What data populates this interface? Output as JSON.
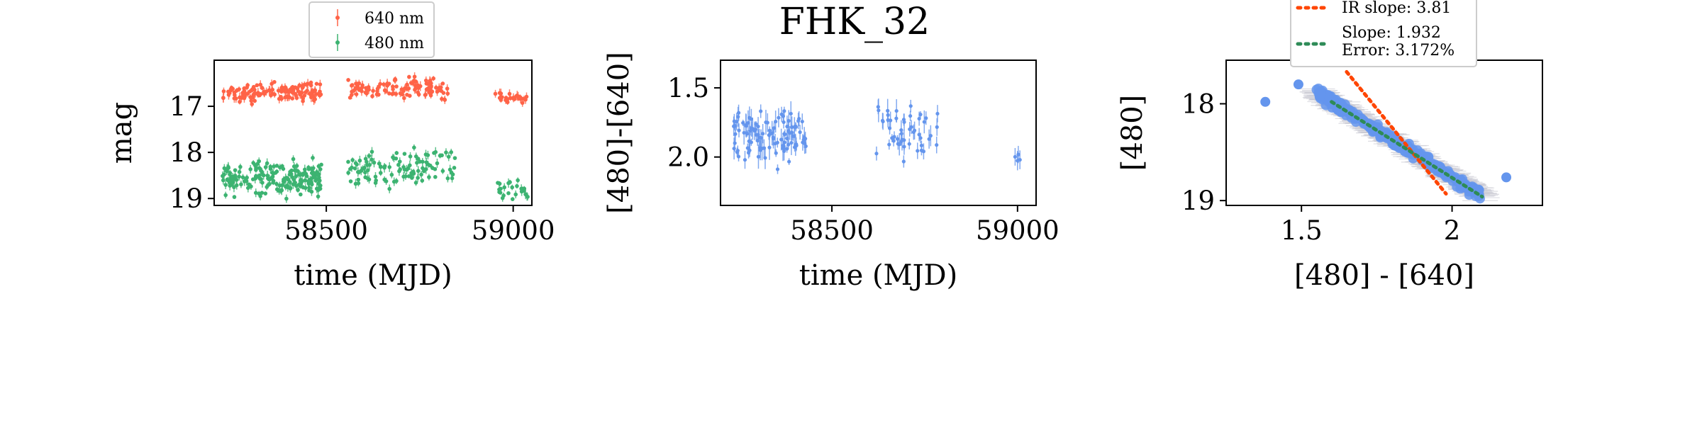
{
  "colors": {
    "red": "#ff6347",
    "green": "#3cb371",
    "blue": "#6495ed",
    "redDot": "#ff4500",
    "greenDot": "#2e8b57",
    "errorbar_gray": "#c8c8d2"
  },
  "title": "FHK_32",
  "chart_data": [
    {
      "type": "scatter",
      "xlabel": "time (MJD)",
      "ylabel": "mag",
      "xlim": [
        58200,
        59050
      ],
      "ylim": [
        19.15,
        16.0
      ],
      "xticks": [
        58500,
        59000
      ],
      "yticks": [
        17,
        18,
        19
      ],
      "legend": {
        "placement": "top-center-outside"
      },
      "series": [
        {
          "name": "640 nm",
          "color": "red",
          "segments": [
            {
              "x": [
                58222,
                58490
              ],
              "y_mean": 16.7,
              "y_spread": 0.35,
              "n": 130
            },
            {
              "x": [
                58558,
                58825
              ],
              "y_mean": 16.62,
              "y_spread": 0.4,
              "n": 110
            },
            {
              "x": [
                58952,
                59040
              ],
              "y_mean": 16.82,
              "y_spread": 0.15,
              "n": 30
            }
          ]
        },
        {
          "name": "480 nm",
          "color": "green",
          "segments": [
            {
              "x": [
                58222,
                58490
              ],
              "y_mean": 18.55,
              "y_spread": 0.65,
              "n": 190
            },
            {
              "x": [
                58558,
                58850
              ],
              "y_mean": 18.35,
              "y_spread": 0.7,
              "n": 110
            },
            {
              "x": [
                58952,
                59040
              ],
              "y_mean": 18.8,
              "y_spread": 0.3,
              "n": 25
            }
          ]
        }
      ]
    },
    {
      "type": "scatter",
      "xlabel": "time (MJD)",
      "ylabel": "[480]-[640]",
      "xlim": [
        58200,
        59050
      ],
      "ylim": [
        2.35,
        1.3
      ],
      "xticks": [
        58500,
        59000
      ],
      "yticks": [
        1.5,
        2.0
      ],
      "series": [
        {
          "color": "blue",
          "segments": [
            {
              "x": [
                58235,
                58430
              ],
              "y_mean": 1.85,
              "y_spread": 0.28,
              "n": 110
            },
            {
              "x": [
                58620,
                58790
              ],
              "y_mean": 1.82,
              "y_spread": 0.32,
              "n": 50
            },
            {
              "x": [
                58990,
                59030
              ],
              "y_mean": 2.0,
              "y_spread": 0.08,
              "n": 4
            }
          ]
        }
      ]
    },
    {
      "type": "scatter",
      "xlabel": "[480] - [640]",
      "ylabel": "[480]",
      "xlim": [
        1.25,
        2.3
      ],
      "ylim": [
        19.05,
        17.55
      ],
      "xticks": [
        1.5,
        2.0
      ],
      "yticks": [
        18,
        19
      ],
      "legend": {
        "placement": "top-center-outside"
      },
      "points": {
        "color": "blue",
        "n": 320,
        "outliers": [
          [
            1.38,
            17.98
          ],
          [
            1.49,
            17.8
          ],
          [
            2.18,
            18.76
          ]
        ]
      },
      "fits": [
        {
          "label": "IR slope: 3.81",
          "color": "red",
          "x": [
            1.65,
            1.98
          ],
          "y": [
            17.67,
            18.93
          ]
        },
        {
          "label": "Slope: 1.932\nError: 3.172%",
          "color": "green",
          "x": [
            1.6,
            2.1
          ],
          "y": [
            17.98,
            18.96
          ]
        }
      ]
    }
  ]
}
